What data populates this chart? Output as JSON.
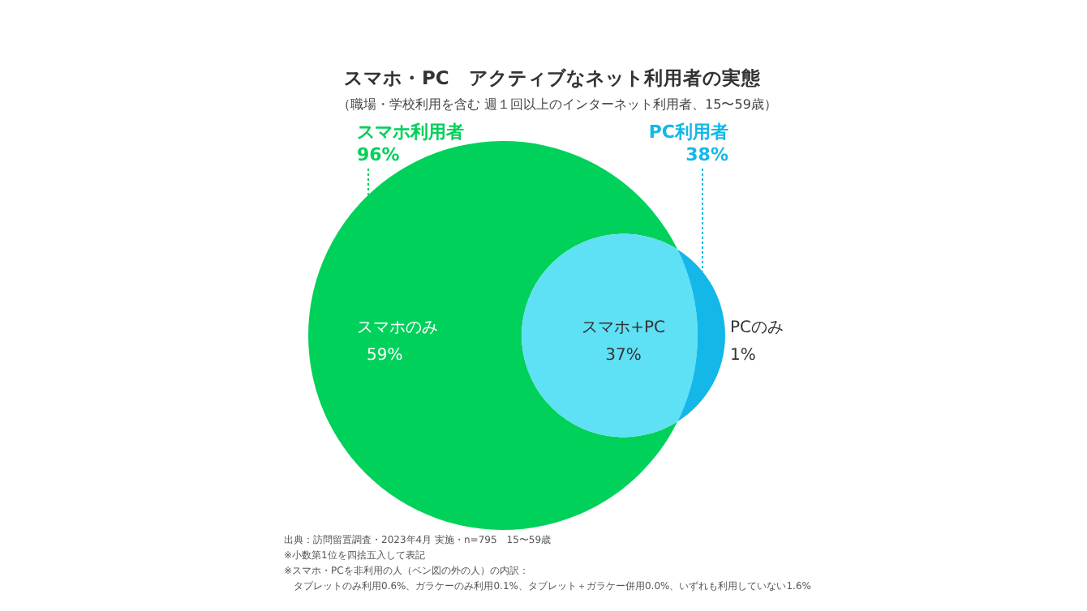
{
  "chart_data": {
    "type": "other",
    "title": "スマホ・PC　アクティブなネット利用者の実態",
    "subtitle": "（職場・学校利用を含む 週１回以上のインターネット利用者、15〜59歳）",
    "categories": [
      "スマホ利用者",
      "PC利用者",
      "スマホのみ",
      "スマホ+PC",
      "PCのみ"
    ],
    "values": [
      96,
      38,
      59,
      37,
      1
    ],
    "value_labels": [
      "96%",
      "38%",
      "59%",
      "37%",
      "1%"
    ],
    "colors": [
      "#00d15a",
      "#14b8e8",
      "#00d15a",
      "#5ee0f5",
      "#14b8e8"
    ],
    "annotations": [
      "出典：訪問留置調査・2023年4月 実施・n=795　15〜59歳",
      "※小数第1位を四捨五入して表記",
      "※スマホ・PCを非利用の人（ベン図の外の人）の内訳：",
      "　タブレットのみ利用0.6%、ガラケーのみ利用0.1%、タブレット＋ガラケー併用0.0%、いずれも利用していない1.6%"
    ]
  }
}
